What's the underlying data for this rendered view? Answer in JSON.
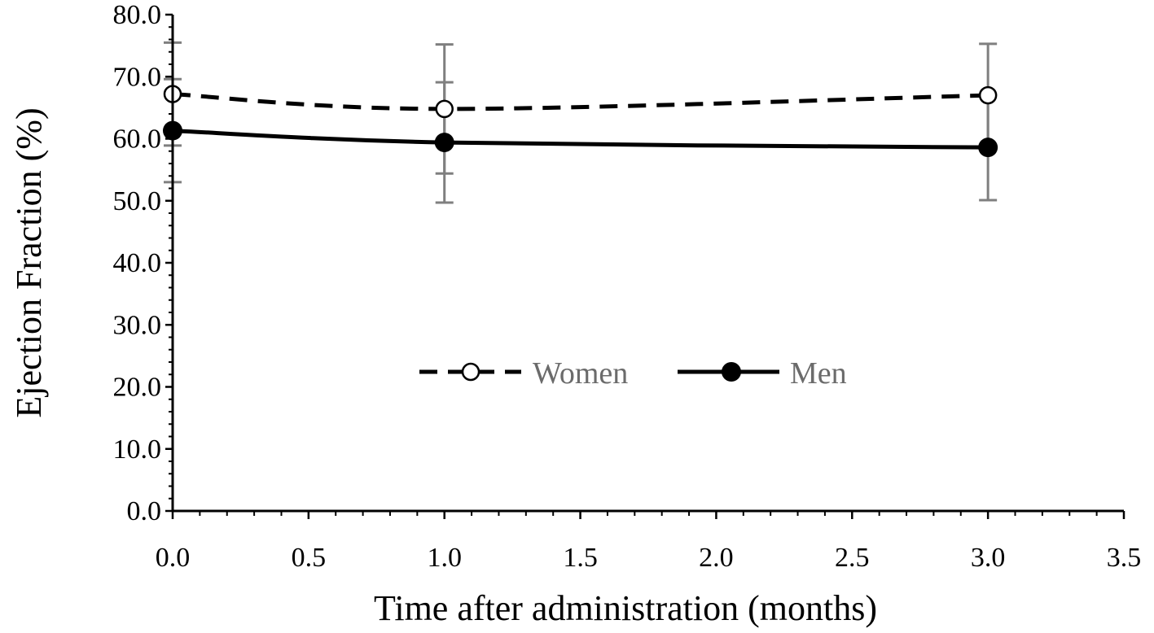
{
  "chart_data": {
    "type": "line",
    "xlabel": "Time after administration  (months)",
    "ylabel": "Ejection Fraction (%)",
    "xlim": [
      0,
      3.5
    ],
    "ylim": [
      0,
      80
    ],
    "x_ticks": [
      "0.0",
      "0.5",
      "1.0",
      "1.5",
      "2.0",
      "2.5",
      "3.0",
      "3.5"
    ],
    "y_ticks": [
      "0.0",
      "10.0",
      "20.0",
      "30.0",
      "40.0",
      "50.0",
      "60.0",
      "70.0",
      "80.0"
    ],
    "grid": false,
    "legend_position": "center",
    "series": [
      {
        "name": "Women",
        "style": "dashed",
        "marker": "open-circle",
        "color": "#000000",
        "x": [
          0,
          1,
          3
        ],
        "y": [
          67.2,
          64.8,
          67.0
        ],
        "error": [
          8.3,
          10.4,
          8.3
        ]
      },
      {
        "name": "Men",
        "style": "solid",
        "marker": "filled-circle",
        "color": "#000000",
        "x": [
          0,
          1,
          3
        ],
        "y": [
          61.3,
          59.4,
          58.6
        ],
        "error": [
          8.3,
          9.7,
          8.5
        ]
      }
    ],
    "error_bar_color": "#7f7f7f"
  }
}
